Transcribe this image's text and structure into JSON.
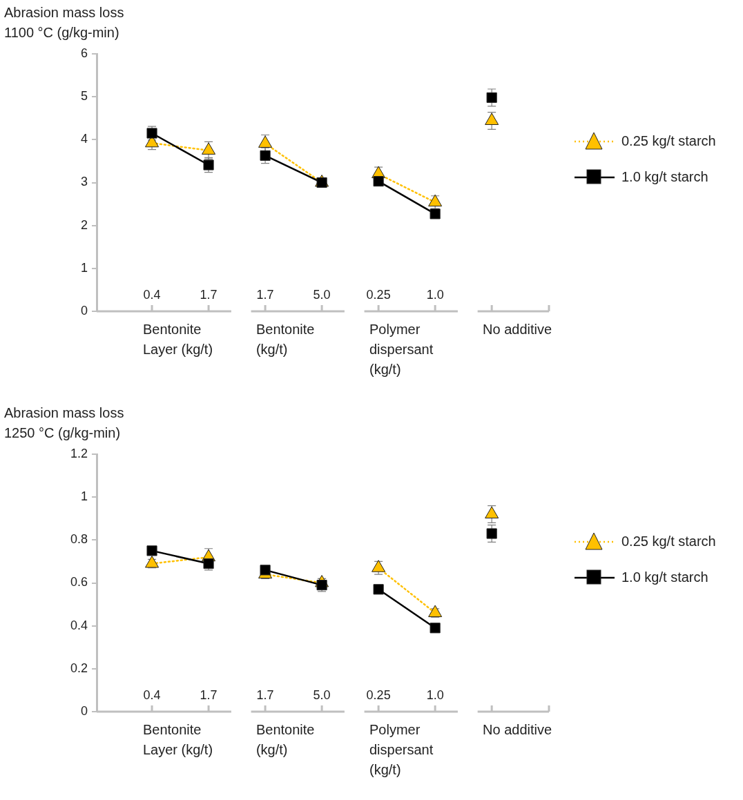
{
  "chart_data": [
    {
      "type": "line",
      "ylabel": "Abrasion mass loss 1100 °C (g/kg-min)",
      "categories": [
        "0.4",
        "1.7",
        "1.7",
        "5.0",
        "0.25",
        "1.0",
        null
      ],
      "annotations": [
        "Bentonite Layer (kg/t)",
        "Bentonite (kg/t)",
        "Polymer dispersant (kg/t)",
        "No additive"
      ],
      "ylim": [
        0,
        6
      ],
      "yticks": [
        0,
        1,
        2,
        3,
        4,
        5,
        6
      ],
      "legend": "right",
      "series": [
        {
          "name": "0.25 kg/t starch",
          "color": "#ffc000",
          "marker": "triangle",
          "line_style": "dotted",
          "values": [
            3.92,
            3.75,
            null,
            null,
            null,
            null,
            null
          ],
          "errors": [
            0.15,
            0.2,
            null,
            null,
            null,
            null,
            null
          ]
        },
        {
          "color": "#ffc000",
          "marker": "triangle",
          "line_style": "dotted",
          "values": [
            null,
            null,
            3.91,
            3.0,
            null,
            null,
            null
          ],
          "errors": [
            null,
            null,
            0.2,
            0.1,
            null,
            null,
            null
          ]
        },
        {
          "color": "#ffc000",
          "marker": "triangle",
          "line_style": "dotted",
          "values": [
            null,
            null,
            null,
            null,
            3.2,
            2.54,
            null
          ],
          "errors": [
            null,
            null,
            null,
            null,
            0.16,
            0.15,
            null
          ]
        },
        {
          "color": "#ffc000",
          "marker": "triangle",
          "line_style": "dotted",
          "values": [
            null,
            null,
            null,
            null,
            null,
            null,
            4.44
          ],
          "errors": [
            null,
            null,
            null,
            null,
            null,
            null,
            0.2
          ]
        },
        {
          "name": "1.0 kg/t starch",
          "color": "#000000",
          "marker": "square",
          "line_style": "solid",
          "values": [
            4.15,
            3.41,
            null,
            null,
            null,
            null,
            null
          ],
          "errors": [
            0.16,
            0.17,
            null,
            null,
            null,
            null,
            null
          ]
        },
        {
          "color": "#000000",
          "marker": "square",
          "line_style": "solid",
          "values": [
            null,
            null,
            3.63,
            3.0,
            null,
            null,
            null
          ],
          "errors": [
            null,
            null,
            0.18,
            0.1,
            null,
            null,
            null
          ]
        },
        {
          "color": "#000000",
          "marker": "square",
          "line_style": "solid",
          "values": [
            null,
            null,
            null,
            null,
            3.03,
            2.27,
            null
          ],
          "errors": [
            null,
            null,
            null,
            null,
            null,
            null,
            null
          ]
        },
        {
          "color": "#000000",
          "marker": "square",
          "line_style": "solid",
          "values": [
            null,
            null,
            null,
            null,
            null,
            null,
            4.98
          ],
          "errors": [
            null,
            null,
            null,
            null,
            null,
            null,
            0.2
          ]
        }
      ]
    },
    {
      "type": "line",
      "ylabel": "Abrasion mass loss 1250 °C (g/kg-min)",
      "categories": [
        "0.4",
        "1.7",
        "1.7",
        "5.0",
        "0.25",
        "1.0",
        null
      ],
      "annotations": [
        "Bentonite Layer (kg/t)",
        "Bentonite (kg/t)",
        "Polymer dispersant (kg/t)",
        "No additive"
      ],
      "ylim": [
        0,
        1.2
      ],
      "yticks": [
        0,
        0.2,
        0.4,
        0.6,
        0.8,
        1,
        1.2
      ],
      "legend": "right",
      "series": [
        {
          "name": "0.25 kg/t starch",
          "color": "#ffc000",
          "marker": "triangle",
          "line_style": "dotted",
          "values": [
            0.69,
            0.72,
            null,
            null,
            null,
            null,
            null
          ],
          "errors": [
            0.02,
            0.04,
            null,
            null,
            null,
            null,
            null
          ]
        },
        {
          "color": "#ffc000",
          "marker": "triangle",
          "line_style": "dotted",
          "values": [
            null,
            null,
            0.64,
            0.6,
            null,
            null,
            null
          ],
          "errors": [
            null,
            null,
            0.02,
            0.02,
            null,
            null,
            null
          ]
        },
        {
          "color": "#ffc000",
          "marker": "triangle",
          "line_style": "dotted",
          "values": [
            null,
            null,
            null,
            null,
            0.67,
            0.46,
            null
          ],
          "errors": [
            null,
            null,
            null,
            null,
            0.03,
            0.02,
            null
          ]
        },
        {
          "color": "#ffc000",
          "marker": "triangle",
          "line_style": "dotted",
          "values": [
            null,
            null,
            null,
            null,
            null,
            null,
            0.92
          ],
          "errors": [
            null,
            null,
            null,
            null,
            null,
            null,
            0.04
          ]
        },
        {
          "name": "1.0 kg/t starch",
          "color": "#000000",
          "marker": "square",
          "line_style": "solid",
          "values": [
            0.75,
            0.69,
            null,
            null,
            null,
            null,
            null
          ],
          "errors": [
            null,
            0.03,
            null,
            null,
            null,
            null,
            null
          ]
        },
        {
          "color": "#000000",
          "marker": "square",
          "line_style": "solid",
          "values": [
            null,
            null,
            0.66,
            0.59,
            null,
            null,
            null
          ],
          "errors": [
            null,
            null,
            null,
            0.03,
            null,
            null,
            null
          ]
        },
        {
          "color": "#000000",
          "marker": "square",
          "line_style": "solid",
          "values": [
            null,
            null,
            null,
            null,
            0.57,
            0.39,
            null
          ],
          "errors": [
            null,
            null,
            null,
            null,
            null,
            null,
            null
          ]
        },
        {
          "color": "#000000",
          "marker": "square",
          "line_style": "solid",
          "values": [
            null,
            null,
            null,
            null,
            null,
            null,
            0.83
          ],
          "errors": [
            null,
            null,
            null,
            null,
            null,
            null,
            0.04
          ]
        }
      ]
    }
  ]
}
